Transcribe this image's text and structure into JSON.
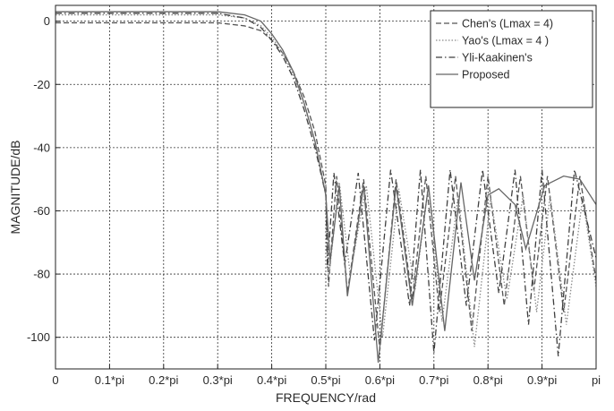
{
  "chart_data": {
    "type": "line",
    "title": "",
    "xlabel": "FREQUENCY/rad",
    "ylabel": "MAGNITUDE/dB",
    "xlim": [
      0,
      1
    ],
    "ylim": [
      -110,
      5
    ],
    "x_unit": "pi rad",
    "grid": true,
    "legend_position": "top-right",
    "xticks": [
      0,
      0.1,
      0.2,
      0.3,
      0.4,
      0.5,
      0.6,
      0.7,
      0.8,
      0.9,
      1.0
    ],
    "xtick_labels": [
      "0",
      "0.1*pi",
      "0.2*pi",
      "0.3*pi",
      "0.4*pi",
      "0.5*pi",
      "0.6*pi",
      "0.7*pi",
      "0.8*pi",
      "0.9*pi",
      "pi"
    ],
    "yticks": [
      0,
      -20,
      -40,
      -60,
      -80,
      -100
    ],
    "ytick_labels": [
      "0",
      "-20",
      "-40",
      "-60",
      "-80",
      "-100"
    ],
    "series": [
      {
        "name": "Chen's (Lmax = 4)",
        "color": "#555555",
        "line_style": "dashed",
        "x": [
          0,
          0.1,
          0.2,
          0.3,
          0.35,
          0.38,
          0.4,
          0.42,
          0.44,
          0.46,
          0.48,
          0.5,
          0.505,
          0.52,
          0.54,
          0.57,
          0.6,
          0.63,
          0.66,
          0.685,
          0.71,
          0.74,
          0.77,
          0.8,
          0.83,
          0.86,
          0.885,
          0.91,
          0.94,
          0.97,
          1.0
        ],
        "y": [
          -0.5,
          -0.5,
          -0.5,
          -0.5,
          -1.5,
          -3,
          -6,
          -10,
          -16,
          -24,
          -35,
          -52,
          -84,
          -49,
          -86,
          -50,
          -104,
          -50,
          -88,
          -49,
          -92,
          -49,
          -98,
          -49,
          -90,
          -49,
          -85,
          -49,
          -92,
          -49,
          -82
        ]
      },
      {
        "name": "Yao's (Lmax = 4 )",
        "color": "#8a8a8a",
        "line_style": "dotted",
        "x": [
          0,
          0.1,
          0.2,
          0.3,
          0.35,
          0.38,
          0.4,
          0.42,
          0.44,
          0.46,
          0.48,
          0.5,
          0.506,
          0.525,
          0.545,
          0.575,
          0.605,
          0.635,
          0.665,
          0.69,
          0.715,
          0.745,
          0.775,
          0.805,
          0.835,
          0.865,
          0.89,
          0.915,
          0.945,
          0.975,
          1.0
        ],
        "y": [
          2,
          2,
          2,
          2,
          1,
          -1.5,
          -5,
          -10,
          -17,
          -26,
          -38,
          -55,
          -80,
          -51,
          -80,
          -52,
          -100,
          -53,
          -85,
          -52,
          -95,
          -55,
          -103,
          -56,
          -88,
          -55,
          -92,
          -55,
          -96,
          -56,
          -84
        ]
      },
      {
        "name": "Yli-Kaakinen's",
        "color": "#3f3f3f",
        "line_style": "dashdot",
        "x": [
          0,
          0.1,
          0.2,
          0.3,
          0.35,
          0.38,
          0.4,
          0.42,
          0.44,
          0.46,
          0.48,
          0.5,
          0.503,
          0.515,
          0.535,
          0.56,
          0.59,
          0.62,
          0.655,
          0.675,
          0.7,
          0.73,
          0.76,
          0.79,
          0.82,
          0.85,
          0.875,
          0.9,
          0.93,
          0.96,
          1.0
        ],
        "y": [
          2.5,
          2.5,
          2.5,
          2.5,
          1,
          -2,
          -6,
          -11,
          -18,
          -28,
          -40,
          -55,
          -78,
          -48,
          -77,
          -48,
          -101,
          -47,
          -90,
          -47,
          -105,
          -47,
          -90,
          -47,
          -86,
          -47,
          -96,
          -47,
          -106,
          -47,
          -75
        ]
      },
      {
        "name": "Proposed",
        "color": "#666666",
        "line_style": "solid",
        "x": [
          0,
          0.1,
          0.2,
          0.3,
          0.35,
          0.38,
          0.4,
          0.42,
          0.44,
          0.46,
          0.48,
          0.5,
          0.508,
          0.525,
          0.54,
          0.57,
          0.597,
          0.63,
          0.66,
          0.69,
          0.72,
          0.75,
          0.775,
          0.8,
          0.82,
          0.85,
          0.87,
          0.905,
          0.94,
          0.97,
          1.0
        ],
        "y": [
          3,
          3,
          3,
          3,
          2,
          0,
          -4,
          -9,
          -16,
          -26,
          -38,
          -55,
          -76,
          -52,
          -87,
          -52,
          -108,
          -52,
          -90,
          -52,
          -98,
          -51,
          -82,
          -55,
          -53,
          -58,
          -72,
          -52,
          -49,
          -50,
          -58
        ]
      }
    ]
  }
}
